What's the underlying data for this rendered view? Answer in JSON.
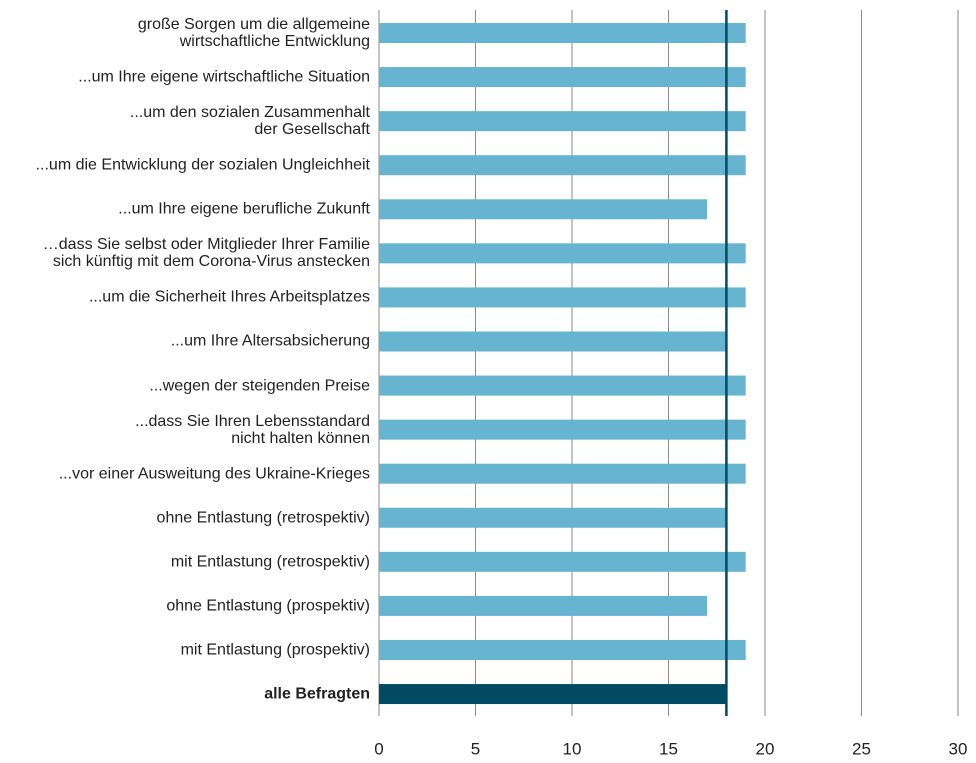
{
  "chart_data": {
    "type": "barh",
    "categories": [
      "große Sorgen um die allgemeine\nwirtschaftliche Entwicklung",
      "...um Ihre eigene wirtschaftliche Situation",
      "...um den sozialen Zusammenhalt\nder Gesellschaft",
      "...um die Entwicklung der sozialen Ungleichheit",
      "...um Ihre eigene berufliche Zukunft",
      "…dass Sie selbst oder Mitglieder Ihrer Familie\nsich künftig mit dem Corona-Virus anstecken",
      "...um die Sicherheit Ihres Arbeitsplatzes",
      "...um Ihre Altersabsicherung",
      "...wegen der steigenden Preise",
      "...dass Sie Ihren Lebensstandard\nnicht halten können",
      "...vor einer Ausweitung des Ukraine-Krieges",
      "ohne Entlastung (retrospektiv)",
      "mit Entlastung (retrospektiv)",
      "ohne Entlastung (prospektiv)",
      "mit Entlastung (prospektiv)",
      "alle Befragten"
    ],
    "values": [
      19,
      19,
      19,
      19,
      17,
      19,
      19,
      18,
      19,
      19,
      19,
      18,
      19,
      17,
      19,
      18
    ],
    "colors": [
      "#67b4d1",
      "#67b4d1",
      "#67b4d1",
      "#67b4d1",
      "#67b4d1",
      "#67b4d1",
      "#67b4d1",
      "#67b4d1",
      "#67b4d1",
      "#67b4d1",
      "#67b4d1",
      "#67b4d1",
      "#67b4d1",
      "#67b4d1",
      "#67b4d1",
      "#004a63"
    ],
    "xlim": [
      0,
      30
    ],
    "xticks": [
      0,
      5,
      10,
      15,
      20,
      25,
      30
    ],
    "grid": true
  }
}
